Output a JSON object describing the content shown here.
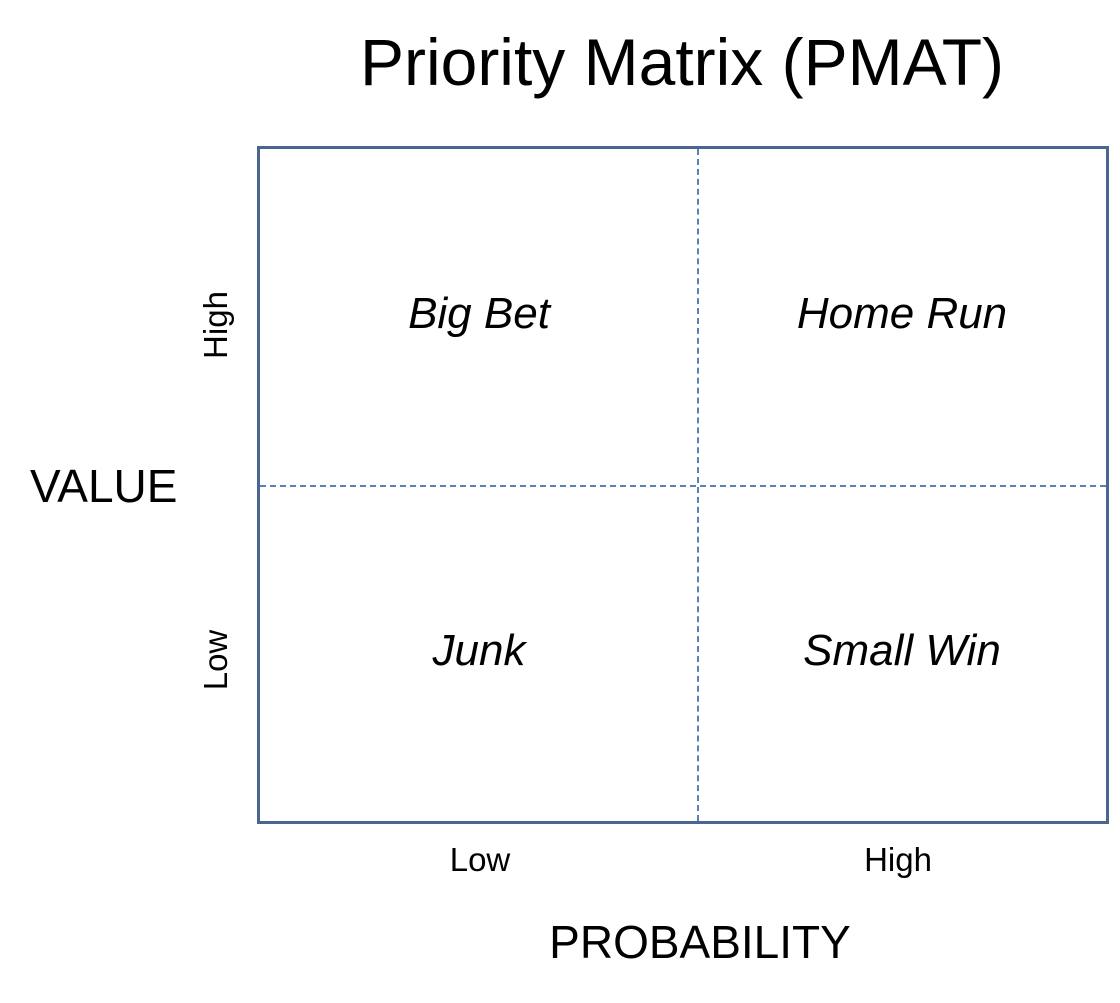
{
  "title": "Priority Matrix (PMAT)",
  "axes": {
    "x_label": "PROBABILITY",
    "y_label": "VALUE",
    "x_ticks": [
      "Low",
      "High"
    ],
    "y_ticks": [
      "High",
      "Low"
    ]
  },
  "quadrants": {
    "top_left": "Big Bet",
    "top_right": "Home Run",
    "bottom_left": "Junk",
    "bottom_right": "Small Win"
  },
  "colors": {
    "border": "#4a6690",
    "divider": "#5b80b4",
    "text": "#000000"
  }
}
